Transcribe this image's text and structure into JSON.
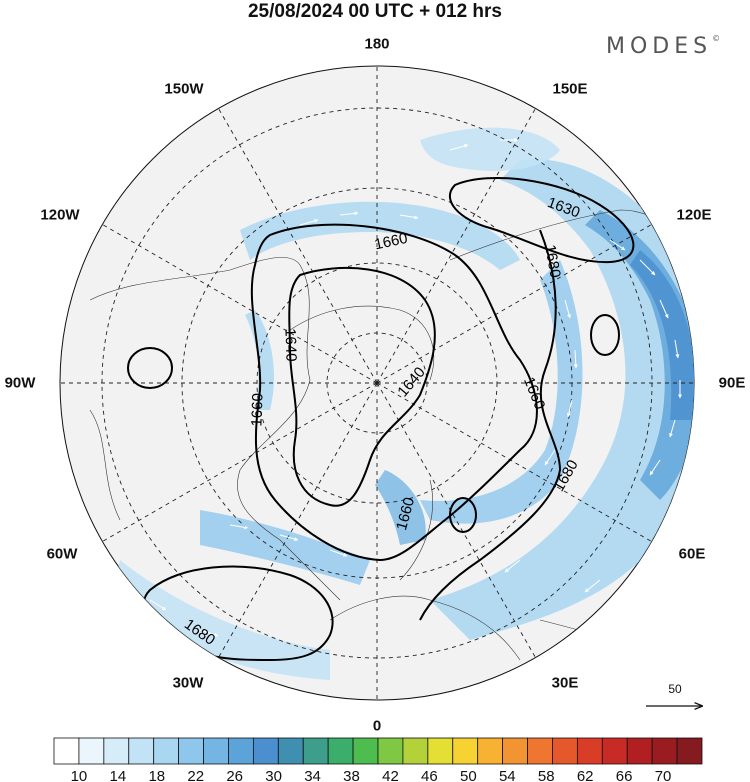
{
  "header": {
    "title": "25/08/2024  00 UTC  + 012 hrs",
    "brand": "MODES",
    "brand_mark": "©"
  },
  "map": {
    "projection": "north-polar-stereographic",
    "background": "#f2f2f2",
    "graticule_color": "#222222",
    "longitude_labels": [
      "180",
      "150E",
      "120E",
      "90E",
      "60E",
      "30E",
      "0",
      "30W",
      "60W",
      "90W",
      "120W",
      "150W"
    ],
    "contour_labels": [
      "1630",
      "1660",
      "1680",
      "1640",
      "1660",
      "1660",
      "1640",
      "1660",
      "1660",
      "1680",
      "1680"
    ]
  },
  "vector_scale": {
    "label": "50"
  },
  "colorbar": {
    "tick_labels": [
      "10",
      "14",
      "18",
      "22",
      "26",
      "30",
      "34",
      "38",
      "42",
      "46",
      "50",
      "54",
      "58",
      "62",
      "66",
      "70"
    ],
    "colors": [
      "#ffffff",
      "#eaf5fc",
      "#d6ecf9",
      "#c2e3f6",
      "#a9d6f1",
      "#8fc7ec",
      "#74b5e3",
      "#5ca3da",
      "#4b8fcf",
      "#3f8fb0",
      "#3d9e8c",
      "#3aae6a",
      "#4ebd4f",
      "#7fc843",
      "#b3d23a",
      "#e3df35",
      "#f7d233",
      "#f7b233",
      "#f39433",
      "#ee7630",
      "#e5582c",
      "#d93d28",
      "#c82a25",
      "#b11f22",
      "#9a1c20",
      "#851a1f"
    ]
  }
}
